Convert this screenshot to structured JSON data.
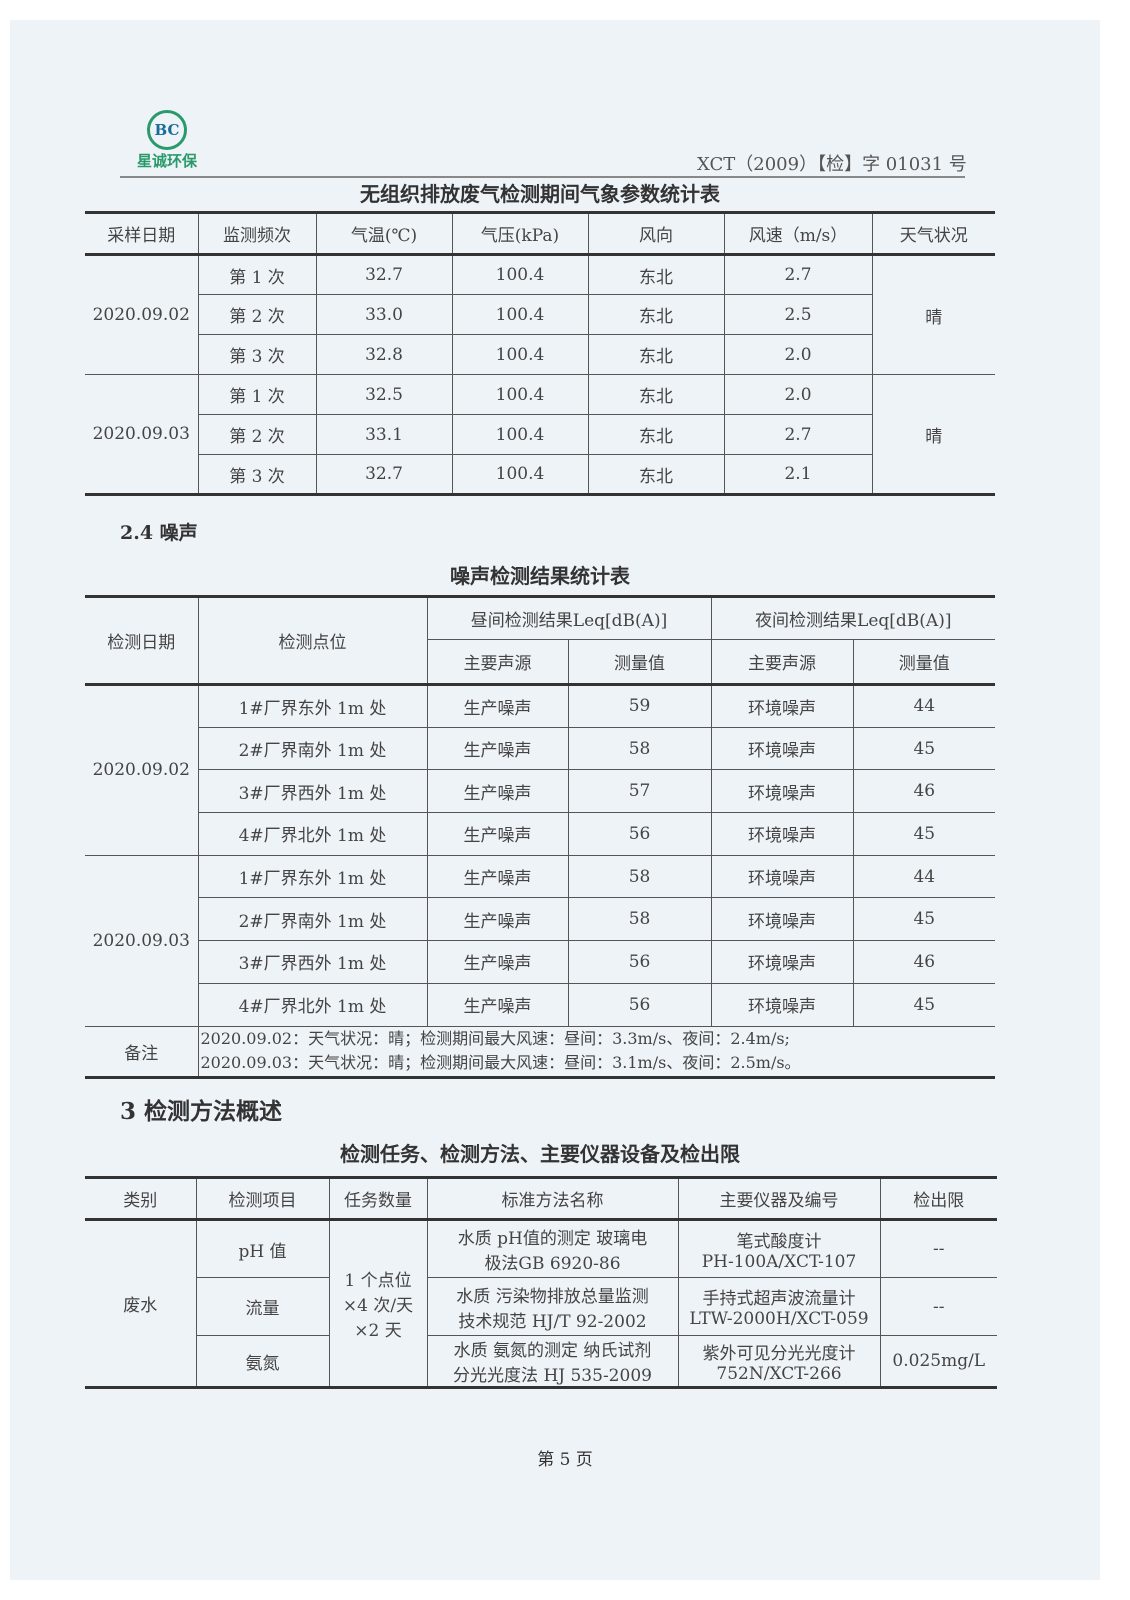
{
  "header": {
    "logo_text": "星诚环保",
    "report_no": "XCT（2009）【检】字 01031 号"
  },
  "table1": {
    "title": "无组织排放废气检测期间气象参数统计表",
    "headers": [
      "采样日期",
      "监测频次",
      "气温(℃)",
      "气压(kPa)",
      "风向",
      "风速（m/s）",
      "天气状况"
    ],
    "groups": [
      {
        "date": "2020.09.02",
        "weather": "晴",
        "rows": [
          [
            "第 1 次",
            "32.7",
            "100.4",
            "东北",
            "2.7"
          ],
          [
            "第 2 次",
            "33.0",
            "100.4",
            "东北",
            "2.5"
          ],
          [
            "第 3 次",
            "32.8",
            "100.4",
            "东北",
            "2.0"
          ]
        ]
      },
      {
        "date": "2020.09.03",
        "weather": "晴",
        "rows": [
          [
            "第 1 次",
            "32.5",
            "100.4",
            "东北",
            "2.0"
          ],
          [
            "第 2 次",
            "33.1",
            "100.4",
            "东北",
            "2.7"
          ],
          [
            "第 3 次",
            "32.7",
            "100.4",
            "东北",
            "2.1"
          ]
        ]
      }
    ]
  },
  "section_24": "2.4  噪声",
  "table2": {
    "title": "噪声检测结果统计表",
    "headers": {
      "date": "检测日期",
      "point": "检测点位",
      "day": "昼间检测结果Leq[dB(A)]",
      "night": "夜间检测结果Leq[dB(A)]",
      "source": "主要声源",
      "value": "测量值"
    },
    "groups": [
      {
        "date": "2020.09.02",
        "rows": [
          [
            "1#厂界东外 1m 处",
            "生产噪声",
            "59",
            "环境噪声",
            "44"
          ],
          [
            "2#厂界南外 1m 处",
            "生产噪声",
            "58",
            "环境噪声",
            "45"
          ],
          [
            "3#厂界西外 1m 处",
            "生产噪声",
            "57",
            "环境噪声",
            "46"
          ],
          [
            "4#厂界北外 1m 处",
            "生产噪声",
            "56",
            "环境噪声",
            "45"
          ]
        ]
      },
      {
        "date": "2020.09.03",
        "rows": [
          [
            "1#厂界东外 1m 处",
            "生产噪声",
            "58",
            "环境噪声",
            "44"
          ],
          [
            "2#厂界南外 1m 处",
            "生产噪声",
            "58",
            "环境噪声",
            "45"
          ],
          [
            "3#厂界西外 1m 处",
            "生产噪声",
            "56",
            "环境噪声",
            "46"
          ],
          [
            "4#厂界北外 1m 处",
            "生产噪声",
            "56",
            "环境噪声",
            "45"
          ]
        ]
      }
    ],
    "note_label": "备注",
    "notes": [
      "2020.09.02：天气状况：晴；检测期间最大风速：昼间：3.3m/s、夜间：2.4m/s;",
      "2020.09.03：天气状况：晴；检测期间最大风速：昼间：3.1m/s、夜间：2.5m/s。"
    ]
  },
  "section_3": "3  检测方法概述",
  "table3": {
    "title": "检测任务、检测方法、主要仪器设备及检出限",
    "headers": [
      "类别",
      "检测项目",
      "任务数量",
      "标准方法名称",
      "主要仪器及编号",
      "检出限"
    ],
    "category": "废水",
    "quantity": [
      "1 个点位",
      "×4 次/天",
      "×2 天"
    ],
    "rows": [
      {
        "item": "pH 值",
        "method": [
          "水质  pH值的测定  玻璃电",
          "极法GB 6920-86"
        ],
        "instrument": [
          "笔式酸度计",
          "PH-100A/XCT-107"
        ],
        "limit": "--"
      },
      {
        "item": "流量",
        "method": [
          "水质  污染物排放总量监测",
          "技术规范  HJ/T 92-2002"
        ],
        "instrument": [
          "手持式超声波流量计",
          "LTW-2000H/XCT-059"
        ],
        "limit": "--"
      },
      {
        "item": "氨氮",
        "method": [
          "水质  氨氮的测定  纳氏试剂",
          "分光光度法  HJ 535-2009"
        ],
        "instrument": [
          "紫外可见分光光度计",
          "752N/XCT-266"
        ],
        "limit": "0.025mg/L"
      }
    ]
  },
  "footer": {
    "page": "第  5  页"
  }
}
